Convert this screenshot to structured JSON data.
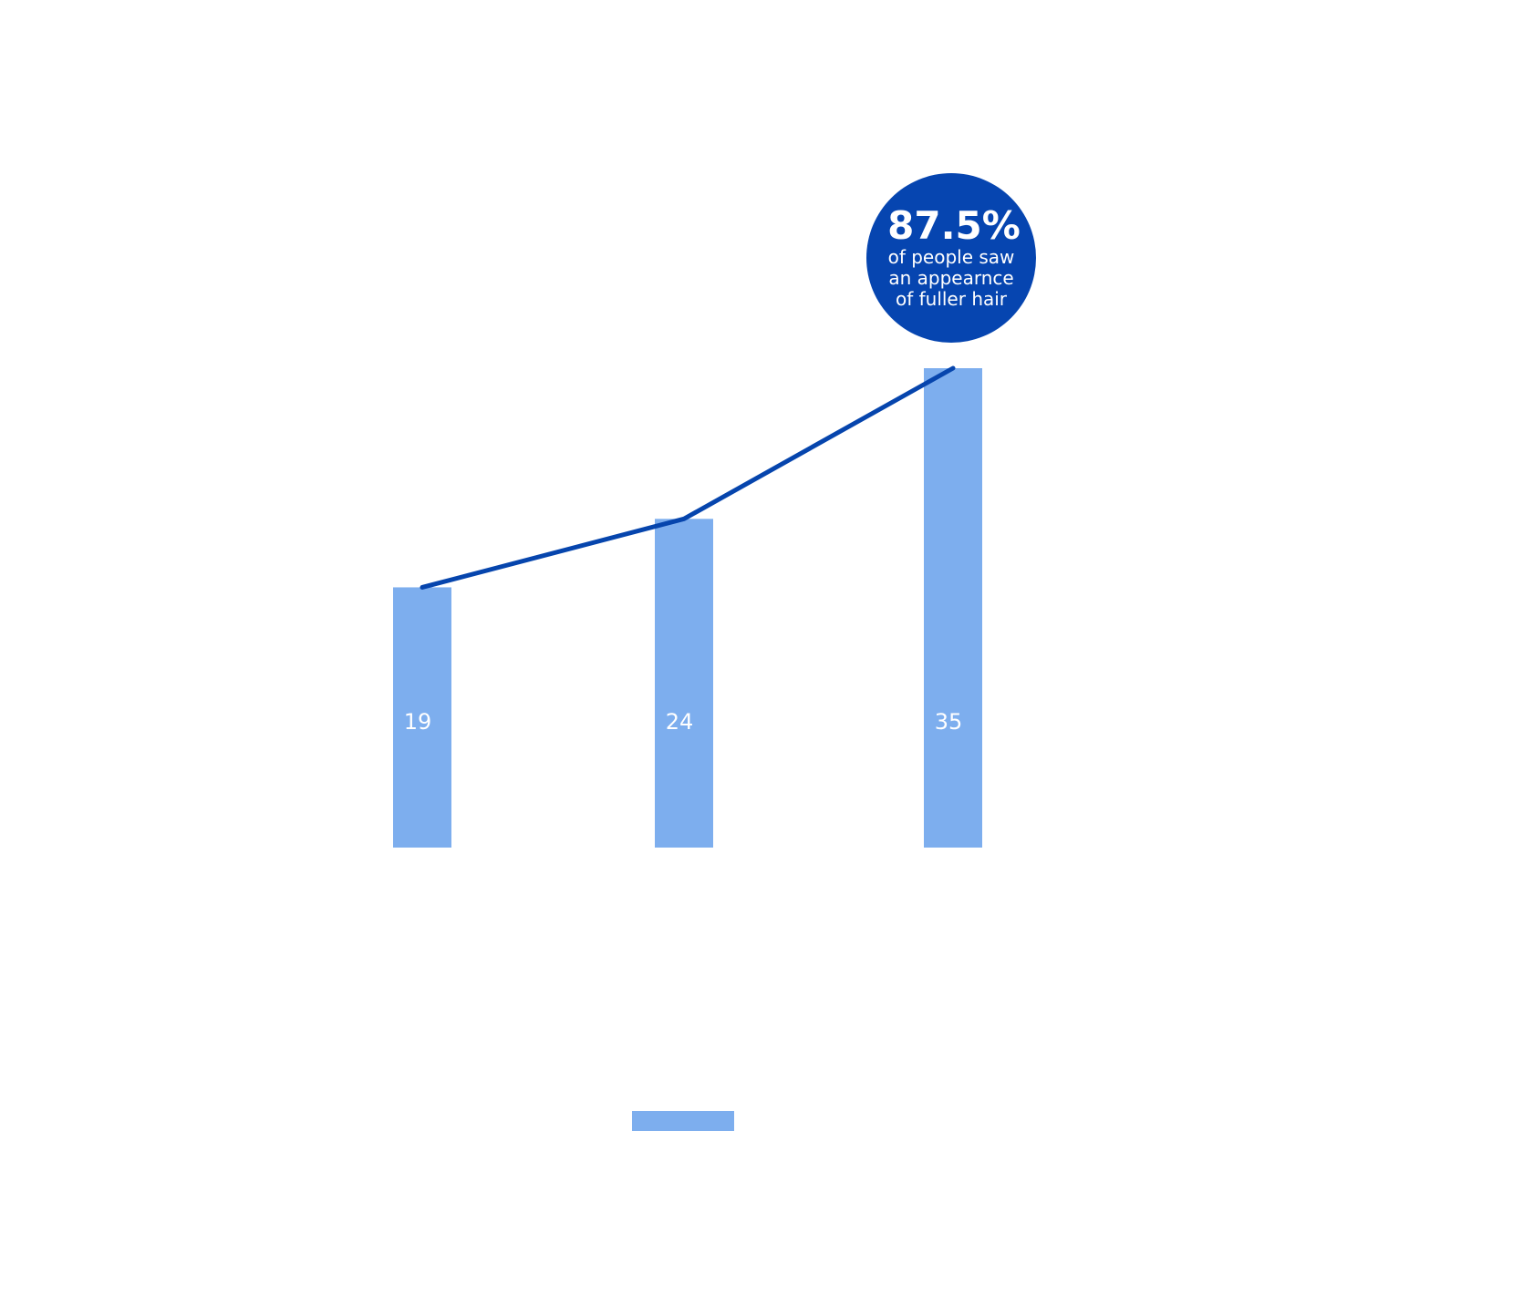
{
  "chart_data": {
    "type": "bar",
    "categories": [
      "",
      "",
      ""
    ],
    "values": [
      19,
      24,
      35
    ],
    "data_labels": [
      "19",
      "24",
      "35"
    ],
    "trend_line": true,
    "ylim": [
      0,
      36
    ],
    "grid": false,
    "legend": {
      "placement": "bottom-center",
      "entries": [
        ""
      ]
    },
    "colors": {
      "bar": "#7daeee",
      "line": "#0645ad",
      "callout": "#0645b0",
      "text_on_bar": "#ffffff"
    },
    "annotation": {
      "value": "87.5%",
      "lines": [
        "of people saw",
        "an appearnce",
        "of fuller hair"
      ]
    }
  }
}
